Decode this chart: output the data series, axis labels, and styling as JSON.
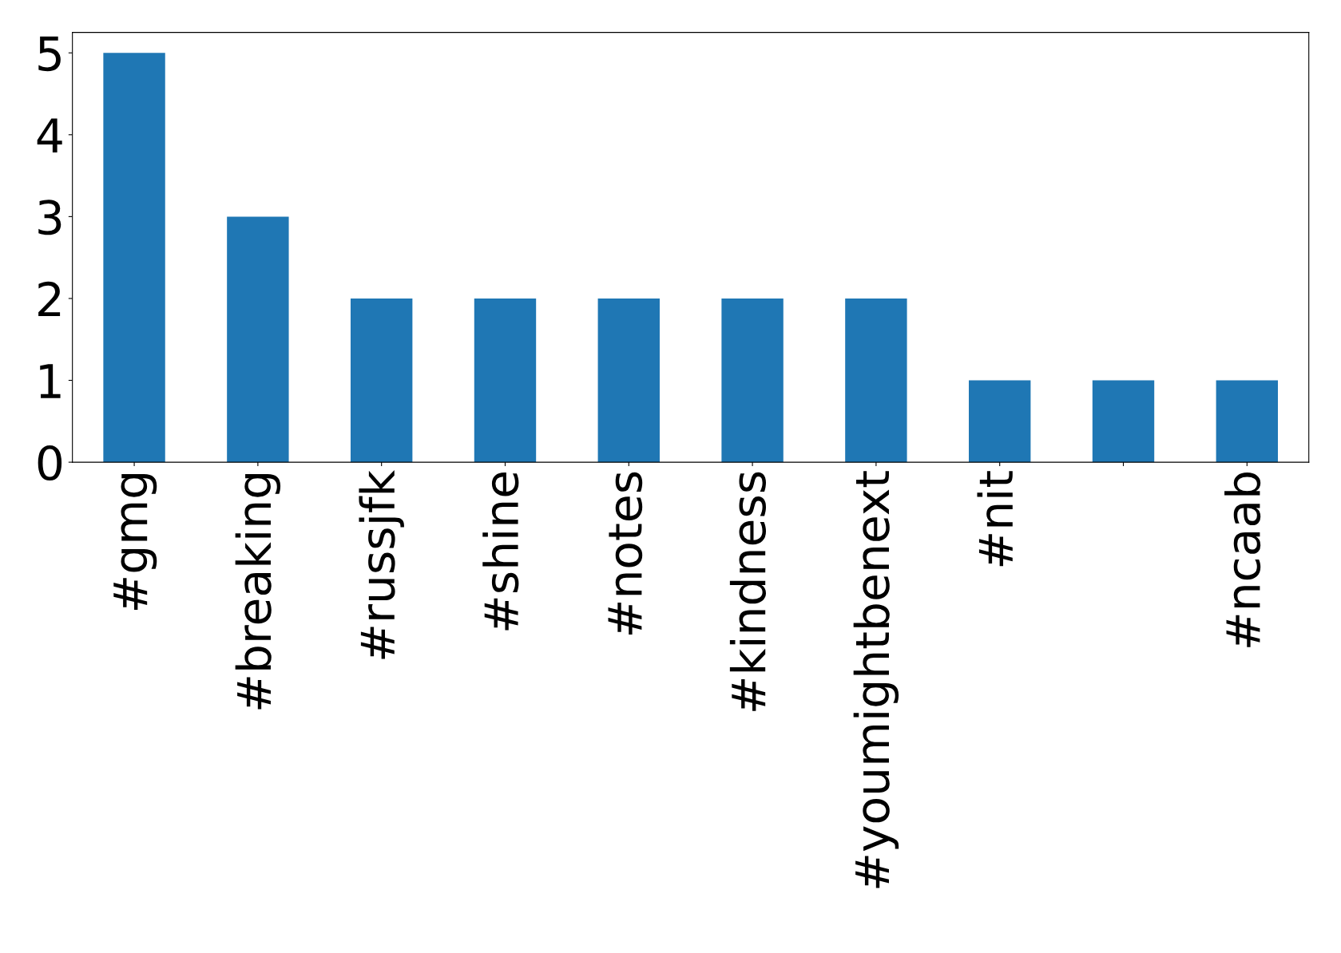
{
  "chart_data": {
    "type": "bar",
    "categories": [
      "#gmg",
      "#breaking",
      "#russjfk",
      "#shine",
      "#notes",
      "#kindness",
      "#youmightbenext",
      "#nit",
      null,
      "#ncaab"
    ],
    "values": [
      5,
      3,
      2,
      2,
      2,
      2,
      2,
      1,
      1,
      1
    ],
    "color": "#1f77b4",
    "ylim": [
      0,
      5.25
    ],
    "yticks": [
      0,
      1,
      2,
      3,
      4,
      5
    ],
    "grid": false,
    "legend": false
  }
}
